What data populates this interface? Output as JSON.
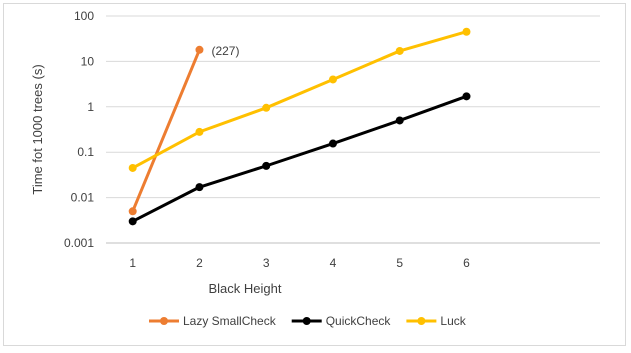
{
  "chart_data": {
    "type": "line",
    "title": "",
    "xlabel": "Black Height",
    "ylabel": "Time fot 1000 trees (s)",
    "yscale": "log",
    "ylim": [
      0.001,
      100
    ],
    "xlim": [
      0.6,
      8.0
    ],
    "x_ticks": [
      "1",
      "2",
      "3",
      "4",
      "5",
      "6"
    ],
    "y_ticks": [
      "0.001",
      "0.01",
      "0.1",
      "1",
      "10",
      "100"
    ],
    "grid": "horizontal",
    "legend_position": "bottom",
    "series": [
      {
        "name": "Lazy SmallCheck",
        "color": "#ed7d31",
        "x": [
          1,
          2
        ],
        "y": [
          0.005,
          18
        ]
      },
      {
        "name": "QuickCheck",
        "color": "#000000",
        "x": [
          1,
          2,
          3,
          4,
          5,
          6
        ],
        "y": [
          0.003,
          0.017,
          0.05,
          0.155,
          0.5,
          1.7
        ]
      },
      {
        "name": "Luck",
        "color": "#ffc000",
        "x": [
          1,
          2,
          3,
          4,
          5,
          6
        ],
        "y": [
          0.045,
          0.28,
          0.95,
          4,
          17,
          45
        ]
      }
    ],
    "annotations": [
      {
        "text": "(227)",
        "series": "Lazy SmallCheck",
        "x": 2,
        "y": 18
      }
    ]
  }
}
